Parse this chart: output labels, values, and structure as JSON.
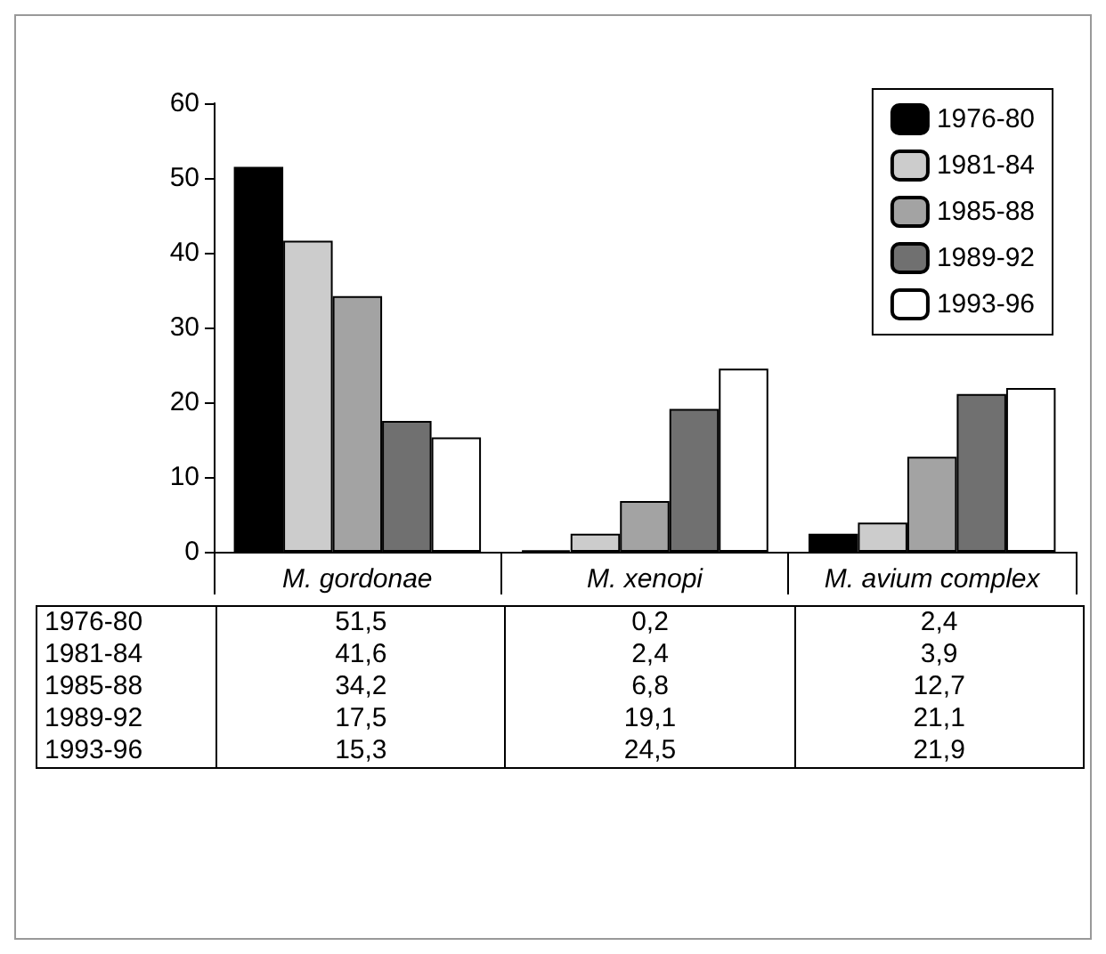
{
  "chart_data": {
    "type": "bar",
    "categories": [
      "M. gordonae",
      "M. xenopi",
      "M. avium complex"
    ],
    "series": [
      {
        "name": "1976-80",
        "color": "#000000",
        "values": [
          51.5,
          0.2,
          2.4
        ],
        "value_labels": [
          "51,5",
          "0,2",
          "2,4"
        ]
      },
      {
        "name": "1981-84",
        "color": "#cccccc",
        "values": [
          41.6,
          2.4,
          3.9
        ],
        "value_labels": [
          "41,6",
          "2,4",
          "3,9"
        ]
      },
      {
        "name": "1985-88",
        "color": "#a3a3a3",
        "values": [
          34.2,
          6.8,
          12.7
        ],
        "value_labels": [
          "34,2",
          "6,8",
          "12,7"
        ]
      },
      {
        "name": "1989-92",
        "color": "#707070",
        "values": [
          17.5,
          19.1,
          21.1
        ],
        "value_labels": [
          "17,5",
          "19,1",
          "21,1"
        ]
      },
      {
        "name": "1993-96",
        "color": "#ffffff",
        "values": [
          15.3,
          24.5,
          21.9
        ],
        "value_labels": [
          "15,3",
          "24,5",
          "21,9"
        ]
      }
    ],
    "ylim": [
      0,
      60
    ],
    "yticks": [
      0,
      10,
      20,
      30,
      40,
      50,
      60
    ],
    "grid": false,
    "legend": "top right"
  }
}
